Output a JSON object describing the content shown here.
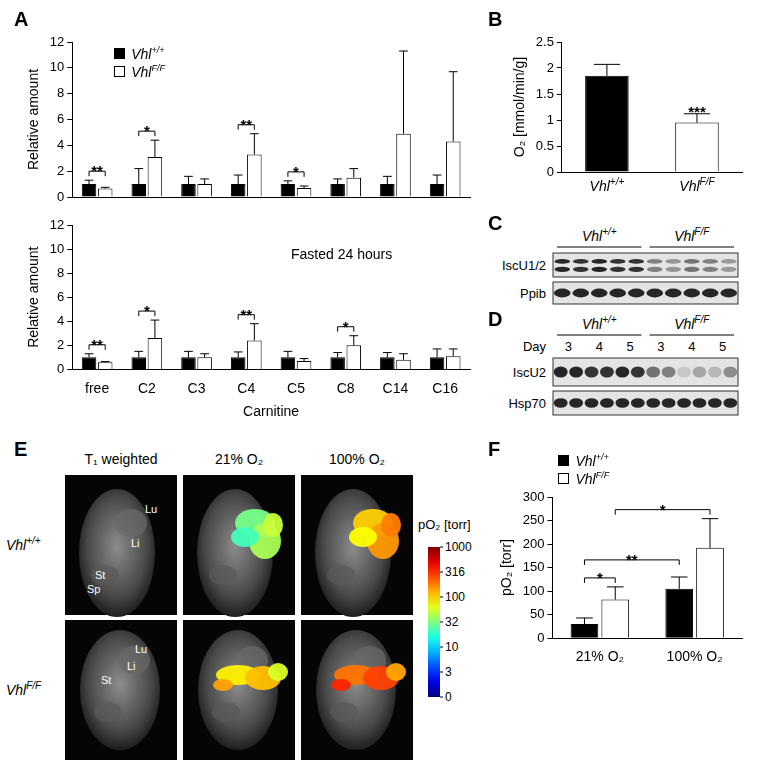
{
  "panel_labels": [
    "A",
    "B",
    "C",
    "D",
    "E",
    "F"
  ],
  "chart_data": [
    {
      "type": "bar",
      "ylabel": "Relative amount",
      "categories": [
        "free",
        "C2",
        "C3",
        "C4",
        "C5",
        "C8",
        "C14",
        "C16"
      ],
      "series": [
        {
          "name": "Vhl+/+",
          "color": "#000000",
          "values": [
            1,
            1,
            1,
            1,
            1,
            1,
            1,
            1
          ],
          "errors": [
            0.3,
            1.2,
            0.6,
            0.7,
            0.25,
            0.4,
            0.6,
            0.7
          ]
        },
        {
          "name": "VhlF/F",
          "color": "#ffffff",
          "values": [
            0.65,
            3.1,
            1.0,
            3.3,
            0.7,
            1.5,
            4.9,
            4.3
          ],
          "errors": [
            0.1,
            1.3,
            0.4,
            1.6,
            0.15,
            0.7,
            6.4,
            5.4
          ]
        }
      ],
      "ylim": [
        0,
        12
      ],
      "yticks": [
        0,
        2,
        4,
        6,
        8,
        10,
        12
      ],
      "grid": false,
      "legend": "upper left",
      "tick_labels": "y",
      "significance": [
        {
          "from": [
            0,
            0
          ],
          "to": [
            0,
            1
          ],
          "text": "**"
        },
        {
          "from": [
            1,
            0
          ],
          "to": [
            1,
            1
          ],
          "text": "*"
        },
        {
          "from": [
            3,
            0
          ],
          "to": [
            3,
            1
          ],
          "text": "**"
        },
        {
          "from": [
            4,
            0
          ],
          "to": [
            4,
            1
          ],
          "text": "*"
        }
      ]
    },
    {
      "type": "bar",
      "ylabel": "Relative amount",
      "xlabel": "Carnitine",
      "annotations": [
        "Fasted 24 hours"
      ],
      "categories": [
        "free",
        "C2",
        "C3",
        "C4",
        "C5",
        "C8",
        "C14",
        "C16"
      ],
      "series": [
        {
          "name": "Vhl+/+",
          "color": "#000000",
          "values": [
            1,
            1,
            1,
            1,
            1,
            1,
            1,
            1
          ],
          "errors": [
            0.3,
            0.5,
            0.5,
            0.45,
            0.5,
            0.4,
            0.4,
            0.7
          ]
        },
        {
          "name": "VhlF/F",
          "color": "#ffffff",
          "values": [
            0.6,
            2.6,
            1.0,
            2.4,
            0.7,
            2.0,
            0.8,
            1.1
          ],
          "errors": [
            0.05,
            1.5,
            0.3,
            1.4,
            0.2,
            0.8,
            0.5,
            0.6
          ]
        }
      ],
      "ylim": [
        0,
        12
      ],
      "yticks": [
        0,
        2,
        4,
        6,
        8,
        10,
        12
      ],
      "grid": false,
      "significance": [
        {
          "from": [
            0,
            0
          ],
          "to": [
            0,
            1
          ],
          "text": "**"
        },
        {
          "from": [
            1,
            0
          ],
          "to": [
            1,
            1
          ],
          "text": "*"
        },
        {
          "from": [
            3,
            0
          ],
          "to": [
            3,
            1
          ],
          "text": "**"
        },
        {
          "from": [
            5,
            0
          ],
          "to": [
            5,
            1
          ],
          "text": "*"
        }
      ]
    },
    {
      "type": "bar",
      "ylabel": "O₂ [mmol/min/g]",
      "categories": [
        "Vhl+/+",
        "VhlF/F"
      ],
      "values": [
        1.85,
        0.95
      ],
      "errors": [
        0.22,
        0.17
      ],
      "colors": [
        "#000000",
        "#ffffff"
      ],
      "ylim": [
        0,
        2.5
      ],
      "yticks": [
        0,
        0.5,
        1,
        1.5,
        2,
        2.5
      ],
      "grid": false,
      "significance": [
        {
          "from": [
            1,
            0
          ],
          "to": [
            1,
            0
          ],
          "text": "***"
        }
      ]
    },
    {
      "type": "bar",
      "ylabel": "pO₂ [torr]",
      "categories": [
        "21% O₂",
        "100% O₂"
      ],
      "series": [
        {
          "name": "Vhl+/+",
          "color": "#000000",
          "values": [
            30,
            105
          ],
          "errors": [
            13,
            25
          ]
        },
        {
          "name": "VhlF/F",
          "color": "#ffffff",
          "values": [
            82,
            192
          ],
          "errors": [
            27,
            62
          ]
        }
      ],
      "ylim": [
        0,
        300
      ],
      "yticks": [
        0,
        50,
        100,
        150,
        200,
        250,
        300
      ],
      "grid": false,
      "legend": "upper left",
      "significance": [
        {
          "from": [
            0,
            0
          ],
          "to": [
            0,
            1
          ],
          "text": "*"
        },
        {
          "from": [
            0,
            0
          ],
          "to": [
            1,
            0
          ],
          "text": "**"
        },
        {
          "from": [
            0,
            1
          ],
          "to": [
            1,
            1
          ],
          "text": "*"
        }
      ]
    }
  ],
  "blots": [
    {
      "groups": [
        "Vhl+/+",
        "VhlF/F"
      ],
      "rows": [
        "IscU1/2",
        "Ppib"
      ]
    },
    {
      "groups": [
        "Vhl+/+",
        "VhlF/F"
      ],
      "rows": [
        "IscU2",
        "Hsp70"
      ],
      "day_label": "Day",
      "days": [
        [
          3,
          4,
          5
        ],
        [
          3,
          4,
          5
        ]
      ]
    }
  ],
  "images": {
    "columns": [
      "T₁ weighted",
      "21% O₂",
      "100% O₂"
    ],
    "rows": [
      "Vhl+/+",
      "VhlF/F"
    ],
    "organs": [
      [
        "Lu",
        "Li",
        "St",
        "Sp"
      ],
      [
        "Lu",
        "Li",
        "St"
      ]
    ],
    "colorbar": {
      "label": "pO₂ [torr]",
      "ticks": [
        1000,
        316,
        100,
        32,
        10,
        3,
        0
      ]
    }
  }
}
